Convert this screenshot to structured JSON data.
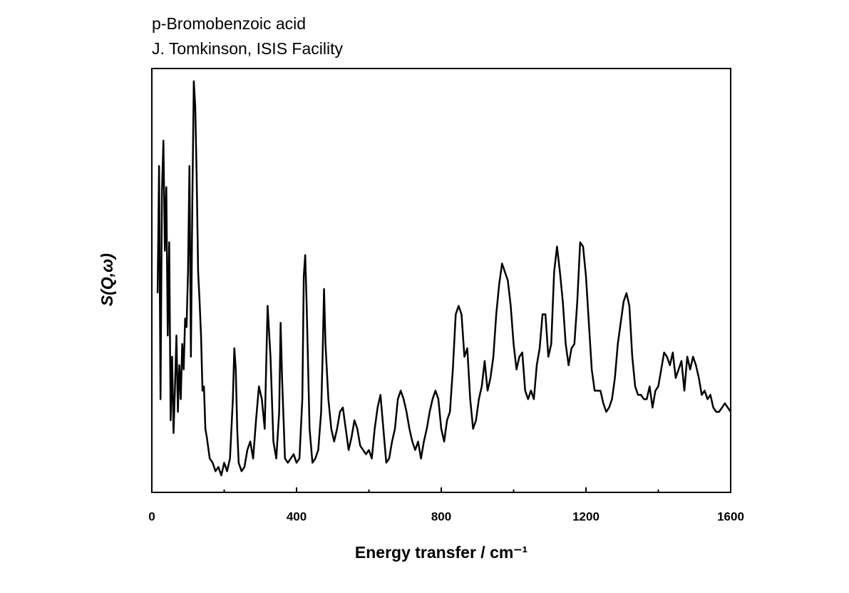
{
  "chart_data": {
    "type": "line",
    "title": "p-Bromobenzoic acid",
    "subtitle": "J. Tomkinson, ISIS Facility",
    "x_label": "Energy transfer / cm⁻¹",
    "y_label": "S(Q,ω)",
    "xlim": [
      0,
      1600
    ],
    "xticks": [
      0,
      400,
      800,
      1200,
      1600
    ],
    "xticks_minor": [
      200,
      600,
      1000,
      1400
    ],
    "ylim": [
      0,
      100
    ],
    "color": "#000000",
    "x": [
      16,
      20,
      24,
      28,
      32,
      36,
      40,
      44,
      48,
      52,
      56,
      60,
      64,
      68,
      72,
      76,
      80,
      84,
      88,
      92,
      96,
      100,
      104,
      108,
      112,
      116,
      120,
      124,
      128,
      132,
      136,
      140,
      144,
      148,
      152,
      160,
      168,
      176,
      184,
      192,
      200,
      208,
      216,
      224,
      228,
      232,
      236,
      240,
      248,
      256,
      264,
      272,
      280,
      288,
      296,
      304,
      312,
      320,
      328,
      336,
      344,
      352,
      356,
      360,
      368,
      376,
      384,
      392,
      400,
      408,
      416,
      420,
      424,
      428,
      436,
      444,
      452,
      460,
      468,
      472,
      476,
      480,
      488,
      496,
      504,
      512,
      520,
      528,
      536,
      544,
      552,
      560,
      568,
      576,
      584,
      592,
      600,
      608,
      616,
      624,
      632,
      640,
      648,
      656,
      664,
      672,
      680,
      688,
      696,
      704,
      712,
      720,
      728,
      736,
      744,
      752,
      760,
      768,
      776,
      784,
      792,
      800,
      808,
      816,
      824,
      832,
      840,
      848,
      856,
      864,
      872,
      880,
      888,
      896,
      904,
      912,
      920,
      928,
      936,
      944,
      952,
      960,
      968,
      976,
      984,
      992,
      1000,
      1008,
      1016,
      1024,
      1032,
      1040,
      1048,
      1056,
      1064,
      1072,
      1080,
      1088,
      1096,
      1104,
      1112,
      1120,
      1128,
      1136,
      1144,
      1152,
      1160,
      1168,
      1176,
      1184,
      1192,
      1200,
      1208,
      1216,
      1224,
      1232,
      1240,
      1248,
      1256,
      1264,
      1272,
      1280,
      1288,
      1296,
      1304,
      1312,
      1320,
      1328,
      1336,
      1344,
      1352,
      1360,
      1368,
      1376,
      1384,
      1392,
      1400,
      1408,
      1416,
      1424,
      1432,
      1440,
      1448,
      1456,
      1464,
      1472,
      1480,
      1488,
      1496,
      1504,
      1512,
      1520,
      1528,
      1536,
      1544,
      1552,
      1560,
      1568,
      1576,
      1584,
      1592,
      1600
    ],
    "values": [
      47,
      77,
      22,
      71,
      83,
      57,
      72,
      37,
      59,
      17,
      32,
      14,
      25,
      37,
      19,
      30,
      22,
      35,
      29,
      41,
      39,
      52,
      77,
      32,
      69,
      97,
      91,
      74,
      52,
      45,
      37,
      24,
      25,
      15,
      13,
      8,
      7,
      5,
      6,
      4,
      7,
      5,
      8,
      22,
      34,
      29,
      15,
      7,
      5,
      6,
      10,
      12,
      8,
      17,
      25,
      22,
      15,
      44,
      32,
      12,
      8,
      19,
      40,
      27,
      8,
      7,
      8,
      9,
      7,
      8,
      22,
      51,
      56,
      44,
      15,
      7,
      8,
      10,
      19,
      32,
      48,
      35,
      22,
      15,
      12,
      15,
      19,
      20,
      15,
      10,
      13,
      17,
      15,
      11,
      10,
      9,
      10,
      8,
      15,
      20,
      23,
      15,
      7,
      8,
      12,
      15,
      22,
      24,
      22,
      19,
      15,
      12,
      10,
      12,
      8,
      12,
      15,
      19,
      22,
      24,
      22,
      15,
      12,
      17,
      19,
      29,
      42,
      44,
      42,
      32,
      34,
      22,
      15,
      17,
      22,
      25,
      31,
      24,
      27,
      32,
      42,
      49,
      54,
      52,
      50,
      44,
      35,
      29,
      32,
      33,
      24,
      22,
      24,
      22,
      30,
      34,
      42,
      42,
      32,
      35,
      52,
      58,
      52,
      45,
      35,
      30,
      34,
      35,
      45,
      59,
      58,
      51,
      40,
      29,
      24,
      24,
      24,
      21,
      19,
      20,
      22,
      27,
      35,
      40,
      45,
      47,
      44,
      32,
      25,
      23,
      23,
      22,
      22,
      25,
      20,
      24,
      25,
      29,
      33,
      32,
      30,
      33,
      27,
      29,
      31,
      24,
      32,
      29,
      32,
      30,
      27,
      23,
      24,
      22,
      23,
      20,
      19,
      19,
      20,
      21,
      20,
      19
    ]
  }
}
